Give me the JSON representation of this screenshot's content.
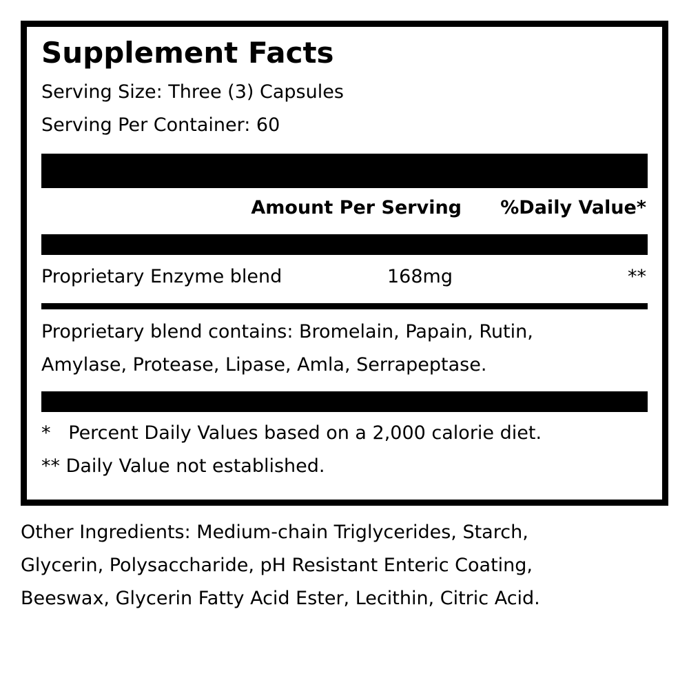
{
  "title": "Supplement Facts",
  "serving_size": "Serving Size: Three (3) Capsules",
  "servings_per_container": "Serving Per Container: 60",
  "header": {
    "amount": "Amount Per Serving",
    "daily_value": "%Daily Value*"
  },
  "row": {
    "name": "Proprietary Enzyme blend",
    "amount": "168mg",
    "dv": "**"
  },
  "blend_line1": "Proprietary blend contains: Bromelain, Papain, Rutin,",
  "blend_line2": "Amylase, Protease, Lipase, Amla, Serrapeptase.",
  "footnote1": "*   Percent Daily Values based on a 2,000 calorie diet.",
  "footnote2": "** Daily Value not established.",
  "other_line1": "Other Ingredients: Medium-chain Triglycerides, Starch,",
  "other_line2": "Glycerin, Polysaccharide, pH Resistant Enteric Coating,",
  "other_line3": "Beeswax, Glycerin Fatty Acid Ester, Lecithin, Citric Acid."
}
